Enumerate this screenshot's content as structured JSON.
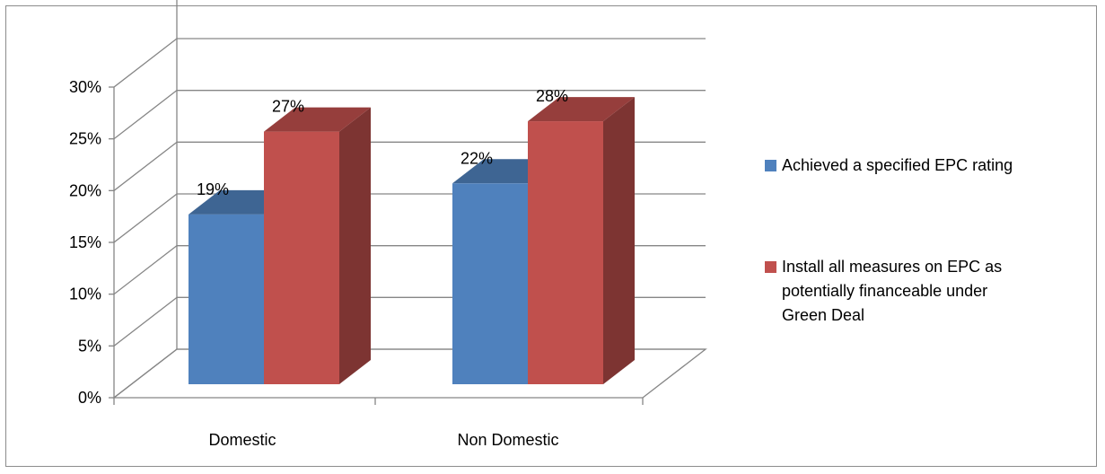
{
  "chart_data": {
    "type": "bar",
    "three_d": true,
    "categories": [
      "Domestic",
      "Non Domestic"
    ],
    "series": [
      {
        "name": "Achieved a specified EPC rating",
        "values": [
          19,
          22
        ],
        "labels": [
          "19%",
          "22%"
        ],
        "color": "#4F81BD"
      },
      {
        "name": "Install all measures on EPC as potentially financeable under Green Deal",
        "values": [
          27,
          28
        ],
        "labels": [
          "27%",
          "28%"
        ],
        "color": "#C0504D"
      }
    ],
    "legend_lines": [
      [
        "Achieved a specified EPC rating"
      ],
      [
        "Install all measures on EPC as",
        "potentially financeable under",
        "Green Deal"
      ]
    ],
    "ylim": [
      0,
      30
    ],
    "yticks": [
      0,
      5,
      10,
      15,
      20,
      25,
      30
    ],
    "ytick_labels": [
      "0%",
      "5%",
      "10%",
      "15%",
      "20%",
      "25%",
      "30%"
    ],
    "grid": true,
    "legend_position": "right",
    "colors": {
      "grid": "#868686",
      "frame": "#8c8c8c"
    }
  }
}
